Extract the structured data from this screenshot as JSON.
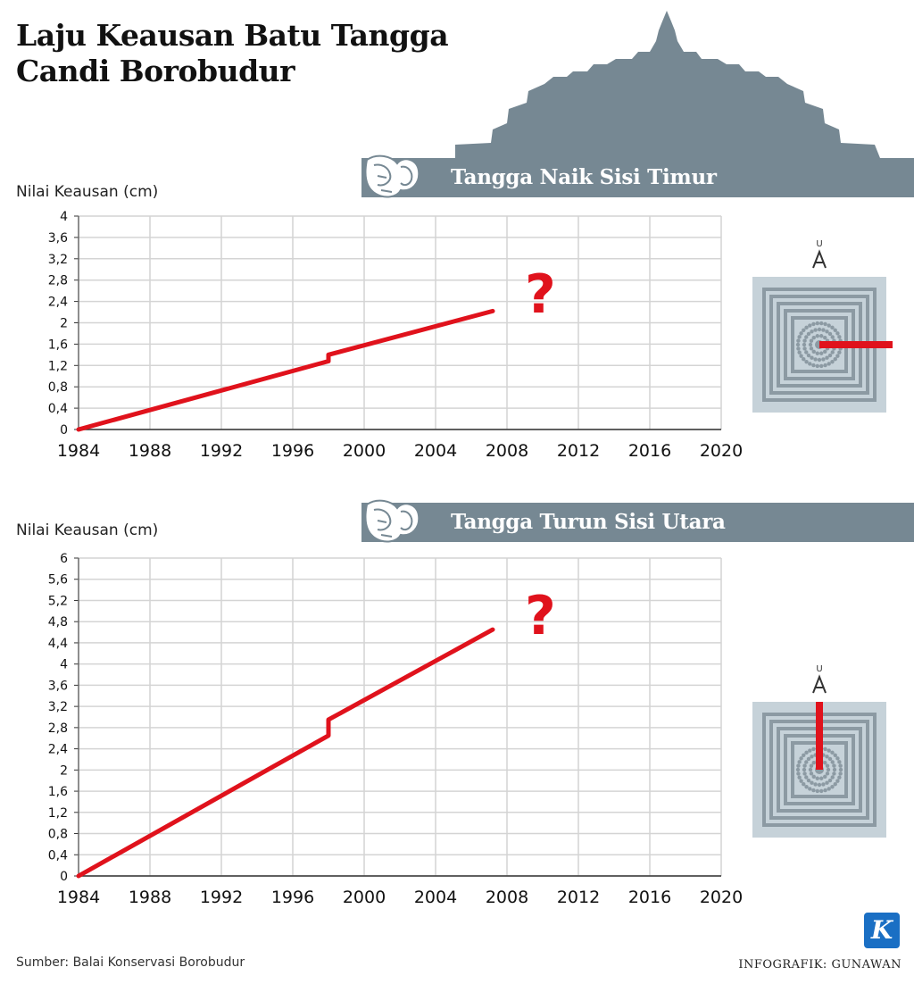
{
  "title": {
    "line1": "Laju Keausan Batu Tangga",
    "line2": "Candi Borobudur"
  },
  "charts": [
    {
      "banner": "Tangga Naik Sisi Timur",
      "ylabel": "Nilai Keausan (cm)",
      "marker": "?",
      "north": "U",
      "direction": "east"
    },
    {
      "banner": "Tangga Turun Sisi Utara",
      "ylabel": "Nilai Keausan (cm)",
      "marker": "?",
      "north": "U",
      "direction": "north"
    }
  ],
  "colors": {
    "line": "#e0121c",
    "banner": "#768893",
    "map_bg": "#c6d2d9",
    "map_fg": "#8c9aa3"
  },
  "chart_data": [
    {
      "type": "line",
      "title": "Tangga Naik Sisi Timur",
      "ylabel": "Nilai Keausan (cm)",
      "xlabel": "",
      "xlim": [
        1984,
        2020
      ],
      "ylim": [
        0,
        4
      ],
      "xticks": [
        1984,
        1988,
        1992,
        1996,
        2000,
        2004,
        2008,
        2012,
        2016,
        2020
      ],
      "yticks": [
        0,
        0.4,
        0.8,
        1.2,
        1.6,
        2,
        2.4,
        2.8,
        3.2,
        3.6,
        4
      ],
      "ytick_labels": [
        "0",
        "0,4",
        "0,8",
        "1,2",
        "1,6",
        "2",
        "2,4",
        "2,8",
        "3,2",
        "3,6",
        "4"
      ],
      "grid": true,
      "series": [
        {
          "x": [
            1984,
            1998,
            1998,
            2007.2
          ],
          "y": [
            0,
            1.28,
            1.4,
            2.22
          ]
        }
      ]
    },
    {
      "type": "line",
      "title": "Tangga Turun Sisi Utara",
      "ylabel": "Nilai Keausan (cm)",
      "xlabel": "",
      "xlim": [
        1984,
        2020
      ],
      "ylim": [
        0,
        6
      ],
      "xticks": [
        1984,
        1988,
        1992,
        1996,
        2000,
        2004,
        2008,
        2012,
        2016,
        2020
      ],
      "yticks": [
        0,
        0.4,
        0.8,
        1.2,
        1.6,
        2,
        2.4,
        2.8,
        3.2,
        3.6,
        4,
        4.4,
        4.8,
        5.2,
        5.6,
        6
      ],
      "ytick_labels": [
        "0",
        "0,4",
        "0,8",
        "1,2",
        "1,6",
        "2",
        "2,4",
        "2,8",
        "3,2",
        "3,6",
        "4",
        "4,4",
        "4,8",
        "5,2",
        "5,6",
        "6"
      ],
      "grid": true,
      "series": [
        {
          "x": [
            1984,
            1998,
            1998,
            2007.2
          ],
          "y": [
            0,
            2.65,
            2.95,
            4.65
          ]
        }
      ]
    }
  ],
  "footer": {
    "source": "Sumber: Balai Konservasi Borobudur",
    "credit": "INFOGRAFIK: GUNAWAN",
    "logo": "K"
  }
}
